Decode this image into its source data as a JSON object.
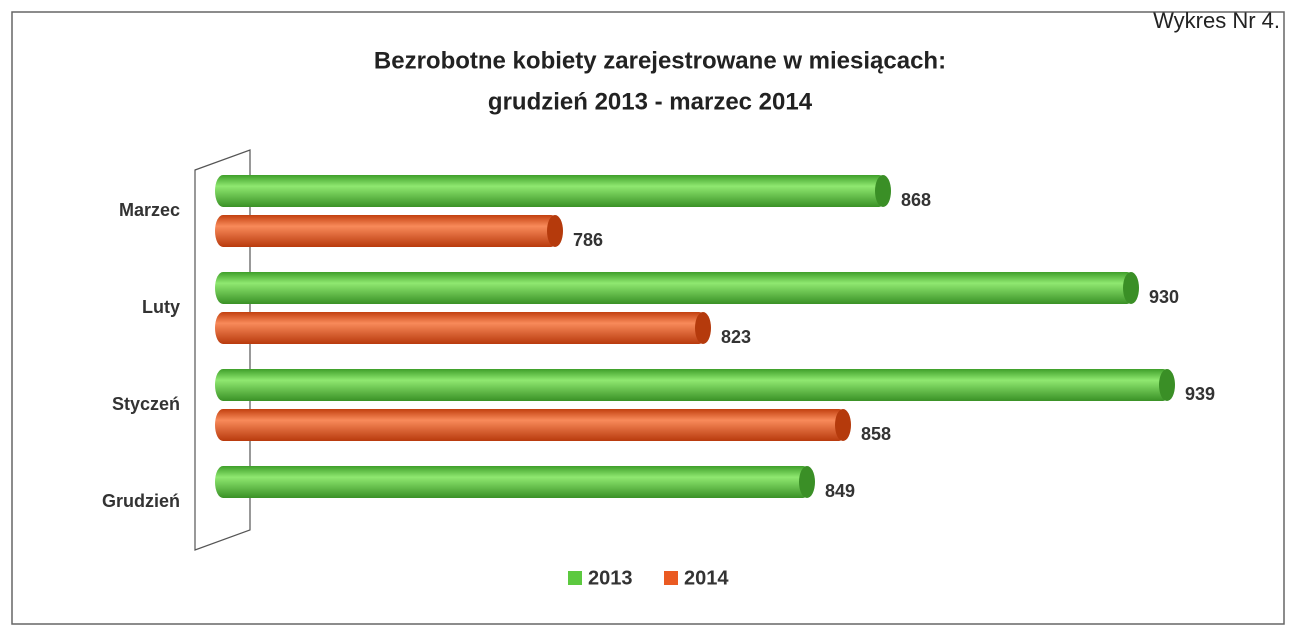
{
  "page": {
    "caption": "Wykres Nr 4."
  },
  "chart_data": {
    "type": "bar",
    "orientation": "horizontal",
    "title": [
      "Bezrobotne kobiety zarejestrowane w miesiącach:",
      "grudzień 2013 - marzec 2014"
    ],
    "categories": [
      "Marzec",
      "Luty",
      "Styczeń",
      "Grudzień"
    ],
    "series": [
      {
        "name": "2013",
        "color": "#5cc93f",
        "values": [
          868,
          930,
          939,
          849
        ]
      },
      {
        "name": "2014",
        "color": "#ea5a22",
        "values": [
          786,
          823,
          858,
          null
        ]
      }
    ],
    "xlim": [
      700,
      950
    ],
    "legend": "bottom"
  }
}
